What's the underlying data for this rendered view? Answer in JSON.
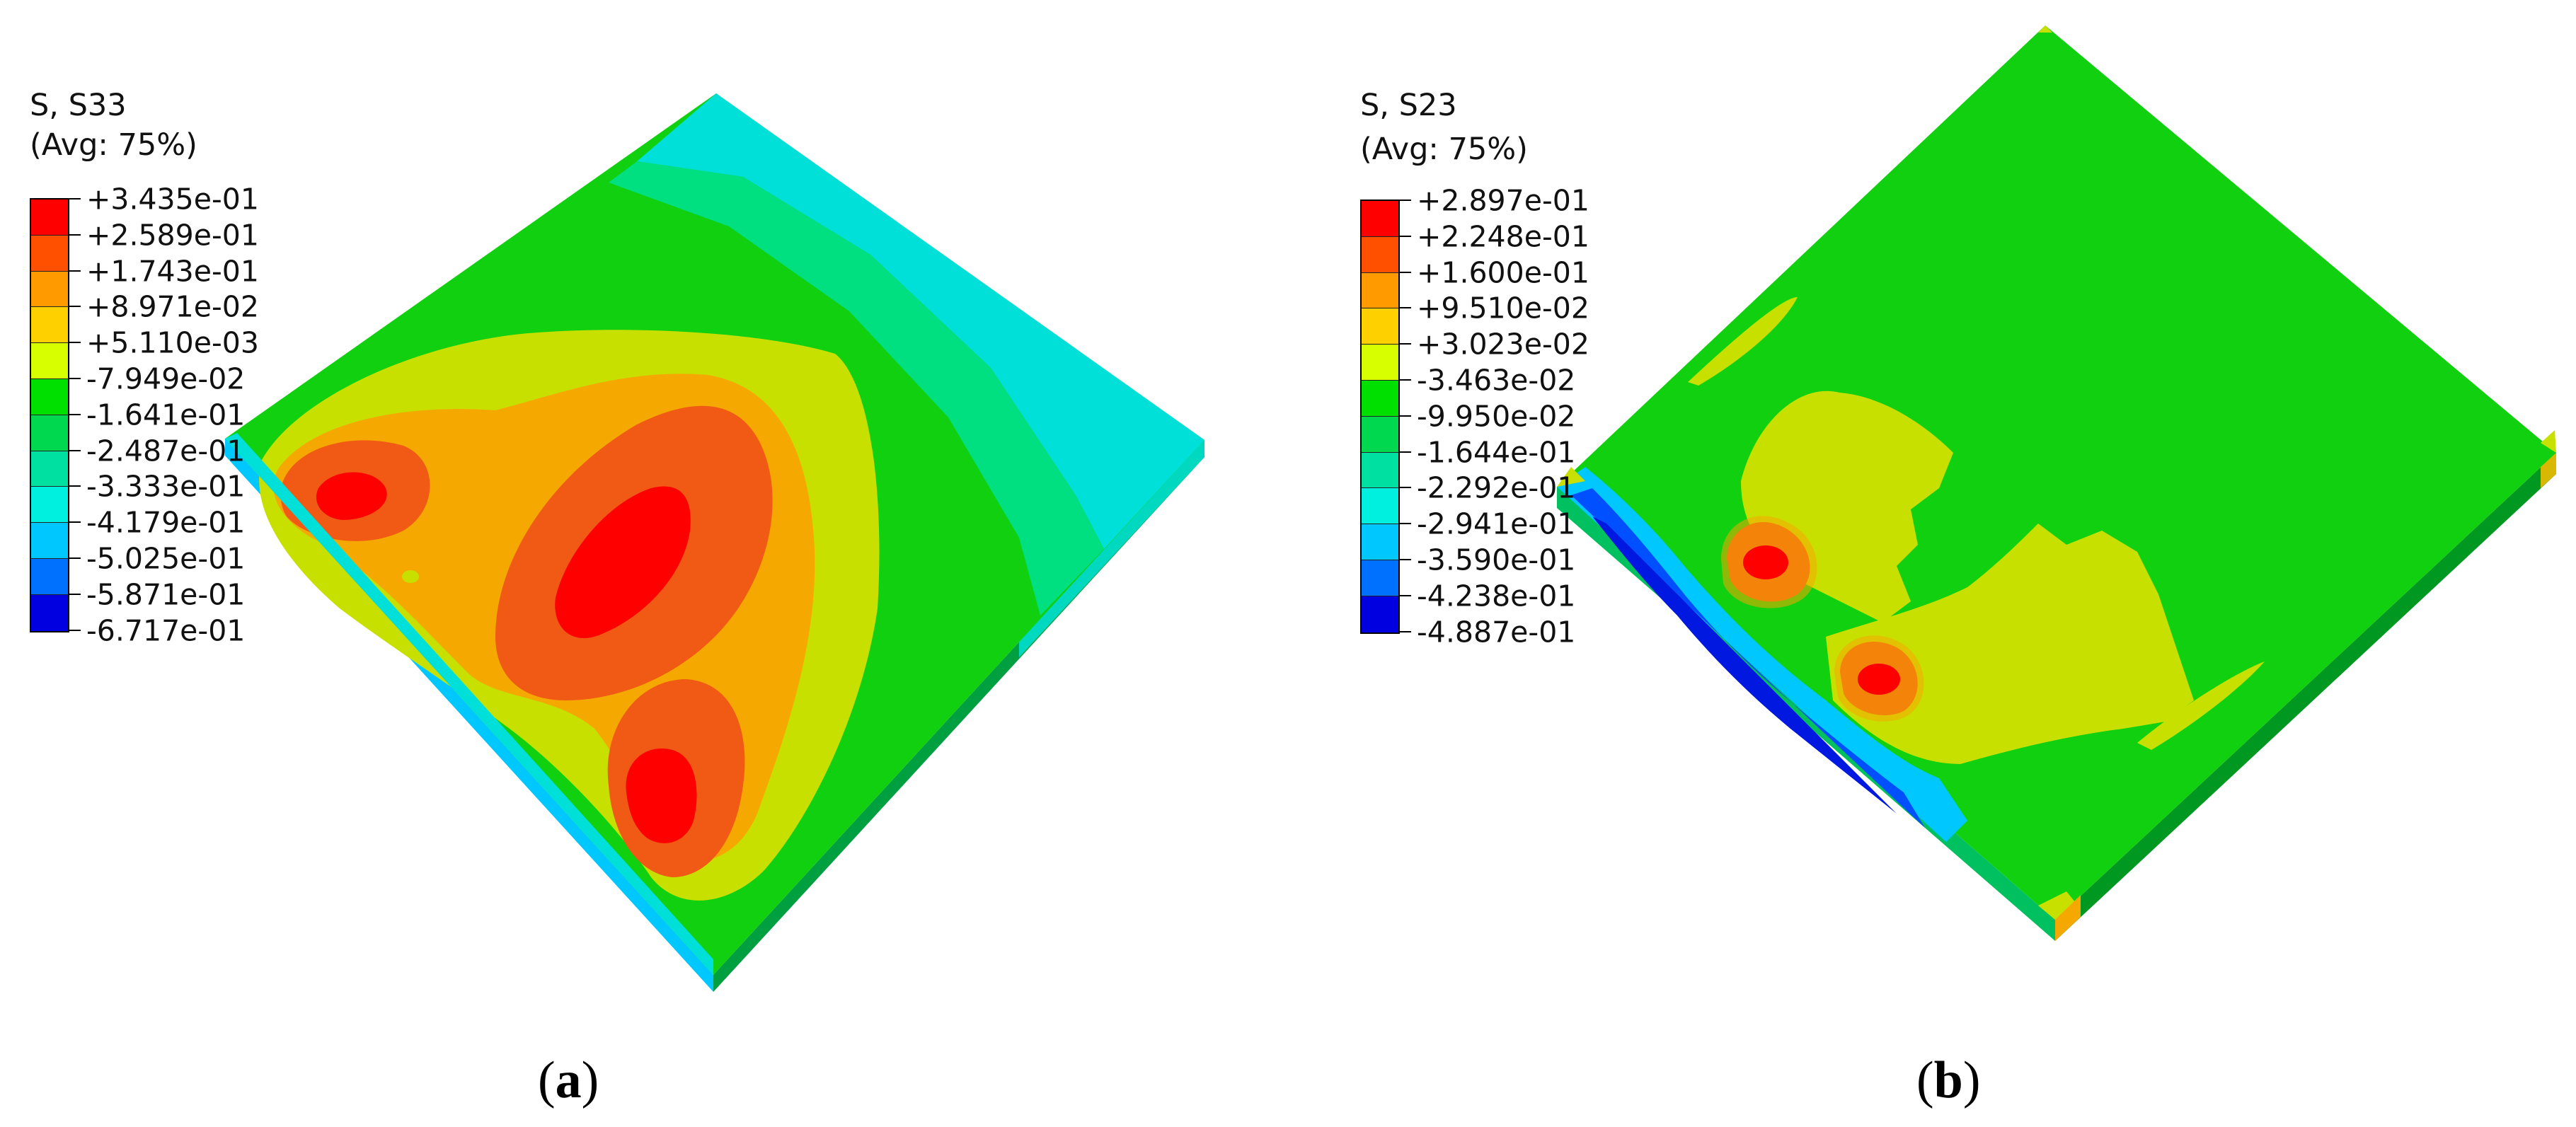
{
  "panels": [
    {
      "id": "a",
      "caption_open": "(",
      "caption_letter": "a",
      "caption_close": ")",
      "legend_title": "S, S33",
      "legend_subtitle": "(Avg: 75%)",
      "legend_values": [
        "+3.435e-01",
        "+2.589e-01",
        "+1.743e-01",
        "+8.971e-02",
        "+5.110e-03",
        "-7.949e-02",
        "-1.641e-01",
        "-2.487e-01",
        "-3.333e-01",
        "-4.179e-01",
        "-5.025e-01",
        "-5.871e-01",
        "-6.717e-01"
      ]
    },
    {
      "id": "b",
      "caption_open": "(",
      "caption_letter": "b",
      "caption_close": ")",
      "legend_title": "S, S23",
      "legend_subtitle": "(Avg: 75%)",
      "legend_values": [
        "+2.897e-01",
        "+2.248e-01",
        "+1.600e-01",
        "+9.510e-02",
        "+3.023e-02",
        "-3.463e-02",
        "-9.950e-02",
        "-1.644e-01",
        "-2.292e-01",
        "-2.941e-01",
        "-3.590e-01",
        "-4.238e-01",
        "-4.887e-01"
      ]
    }
  ],
  "colors": {
    "scale": [
      "#ff0000",
      "#ff5000",
      "#ff9a00",
      "#ffd000",
      "#d8ff00",
      "#00e000",
      "#00d850",
      "#00e0a0",
      "#00f0e0",
      "#00c8ff",
      "#0070ff",
      "#0030ff",
      "#0000e0"
    ],
    "red": "#ff0000",
    "red_orange": "#f05a14",
    "orange": "#f5a800",
    "yellow_green": "#c8e000",
    "green": "#10d010",
    "green_teal": "#00e080",
    "cyan": "#00e0d8",
    "light_blue": "#00b0ff",
    "blue": "#0050ff",
    "dark_blue": "#0018e0",
    "side_dark_green": "#009820"
  }
}
